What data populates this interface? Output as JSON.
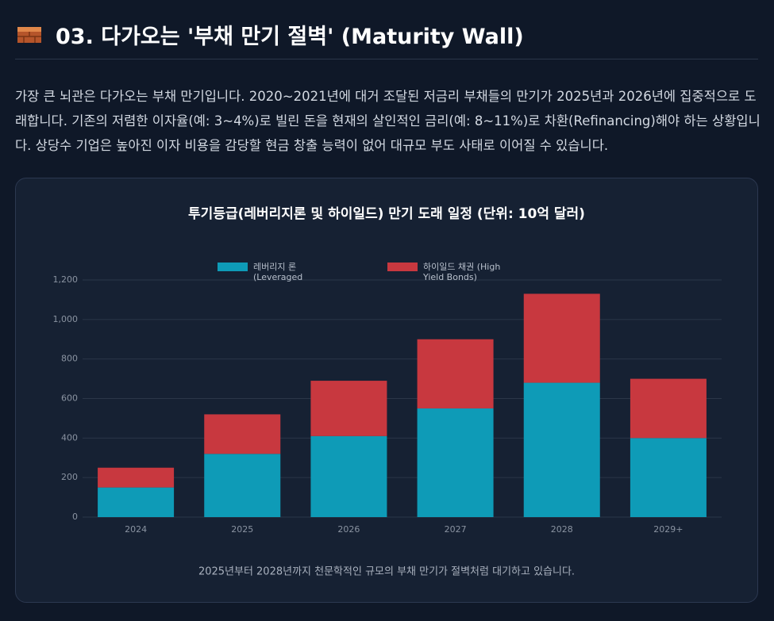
{
  "header": {
    "title": "03. 다가오는 '부채 만기 절벽' (Maturity Wall)"
  },
  "paragraph": "가장 큰 뇌관은 다가오는 부채 만기입니다. 2020~2021년에 대거 조달된 저금리 부채들의 만기가 2025년과 2026년에 집중적으로 도래합니다. 기존의 저렴한 이자율(예: 3~4%)로 빌린 돈을 현재의 살인적인 금리(예: 8~11%)로 차환(Refinancing)해야 하는 상황입니다. 상당수 기업은 높아진 이자 비용을 감당할 현금 창출 능력이 없어 대규모 부도 사태로 이어질 수 있습니다.",
  "chart_data": {
    "type": "stacked-bar",
    "title": "투기등급(레버리지론 및 하이일드) 만기 도래 일정 (단위: 10억 달러)",
    "caption": "2025년부터 2028년까지 천문학적인 규모의 부채 만기가 절벽처럼 대기하고 있습니다.",
    "categories": [
      "2024",
      "2025",
      "2026",
      "2027",
      "2028",
      "2029+"
    ],
    "series": [
      {
        "name": "레버리지 론 (Leveraged Loans)",
        "color": "#0e9bb7",
        "values": [
          150,
          320,
          410,
          550,
          680,
          400
        ]
      },
      {
        "name": "하이일드 채권 (High Yield Bonds)",
        "color": "#c8383f",
        "values": [
          100,
          200,
          280,
          350,
          450,
          300
        ]
      }
    ],
    "ylim": [
      0,
      1200
    ],
    "yticks": [
      0,
      200,
      400,
      600,
      800,
      {
        "value": 1000,
        "label": "1,000"
      },
      {
        "value": 1200,
        "label": "1,200"
      }
    ],
    "grid": true
  }
}
